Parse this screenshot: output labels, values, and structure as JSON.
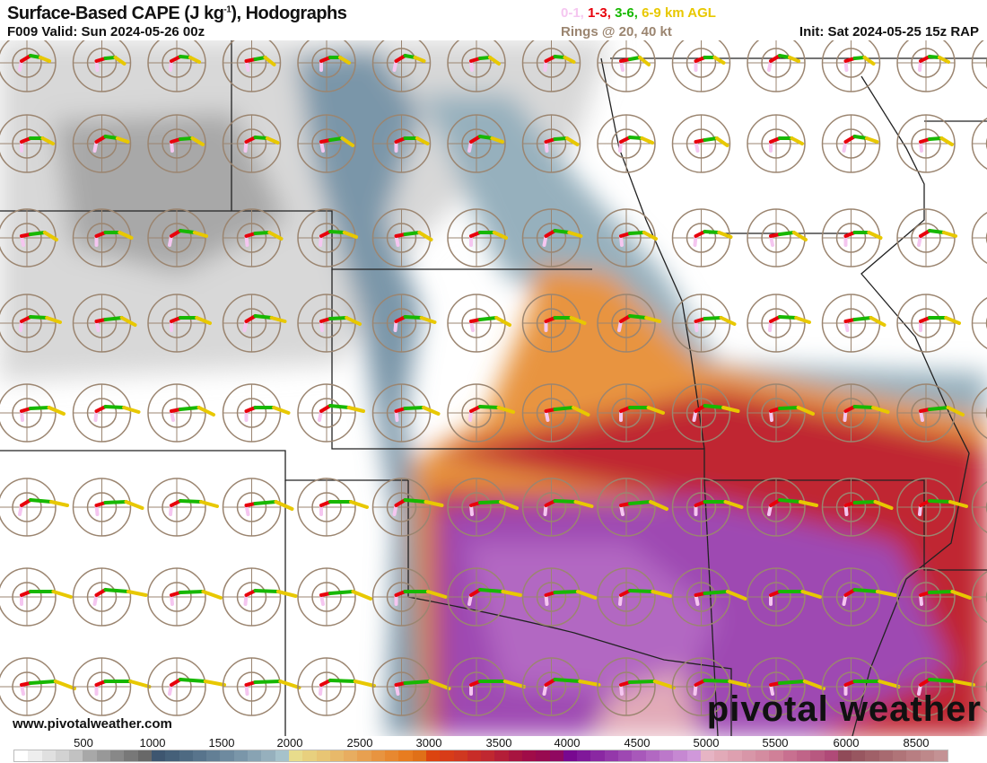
{
  "header": {
    "title": "Surface-Based CAPE (J kg",
    "title_sup": "-1",
    "title_end": "), Hodographs",
    "valid": "F009 Valid: Sun 2024-05-26 00z",
    "layers": [
      {
        "label": "0-1,",
        "color": "#f5c6f0"
      },
      {
        "label": "1-3,",
        "color": "#e8000b"
      },
      {
        "label": "3-6,",
        "color": "#17b800"
      },
      {
        "label": "6-9 km AGL",
        "color": "#e8c800"
      }
    ],
    "rings": "Rings @ 20, 40 kt",
    "init": "Init: Sat 2024-05-25 15z RAP"
  },
  "footer": {
    "site": "www.pivotalweather.com",
    "logo": "pivotal weather"
  },
  "colorbar": {
    "labels": [
      "500",
      "1000",
      "1500",
      "2000",
      "2500",
      "3000",
      "3500",
      "4000",
      "4500",
      "5000",
      "5500",
      "6000",
      "8500"
    ],
    "colors": [
      "#ffffff",
      "#eeeeee",
      "#e0e0e0",
      "#d2d2d2",
      "#c2c2c2",
      "#a8a8a8",
      "#989898",
      "#888888",
      "#787878",
      "#686868",
      "#3e5670",
      "#456079",
      "#4e6a82",
      "#58748c",
      "#637f95",
      "#6e8a9f",
      "#7a96a9",
      "#88a3b3",
      "#96b0bd",
      "#a6c2cb",
      "#e8dc8c",
      "#e8d07e",
      "#e8c574",
      "#e8b96a",
      "#e8ad60",
      "#e8a050",
      "#e89440",
      "#e88830",
      "#e87c20",
      "#e07018",
      "#dc4410",
      "#d83c18",
      "#d03820",
      "#c82c28",
      "#c02830",
      "#b41e38",
      "#a81440",
      "#a00c48",
      "#980a50",
      "#900860",
      "#780890",
      "#80189a",
      "#8a28a2",
      "#9438aa",
      "#9e48b2",
      "#a858ba",
      "#b268c2",
      "#bc78ca",
      "#c688d2",
      "#d098da",
      "#e6b4c4",
      "#e2aab8",
      "#dea0b0",
      "#d896a8",
      "#d48ca0",
      "#d08098",
      "#c87090",
      "#c06488",
      "#b85880",
      "#b04a78",
      "#904a58",
      "#985660",
      "#a06068",
      "#a86a70",
      "#b07478",
      "#b87e82",
      "#be888a",
      "#c49294"
    ]
  }
}
